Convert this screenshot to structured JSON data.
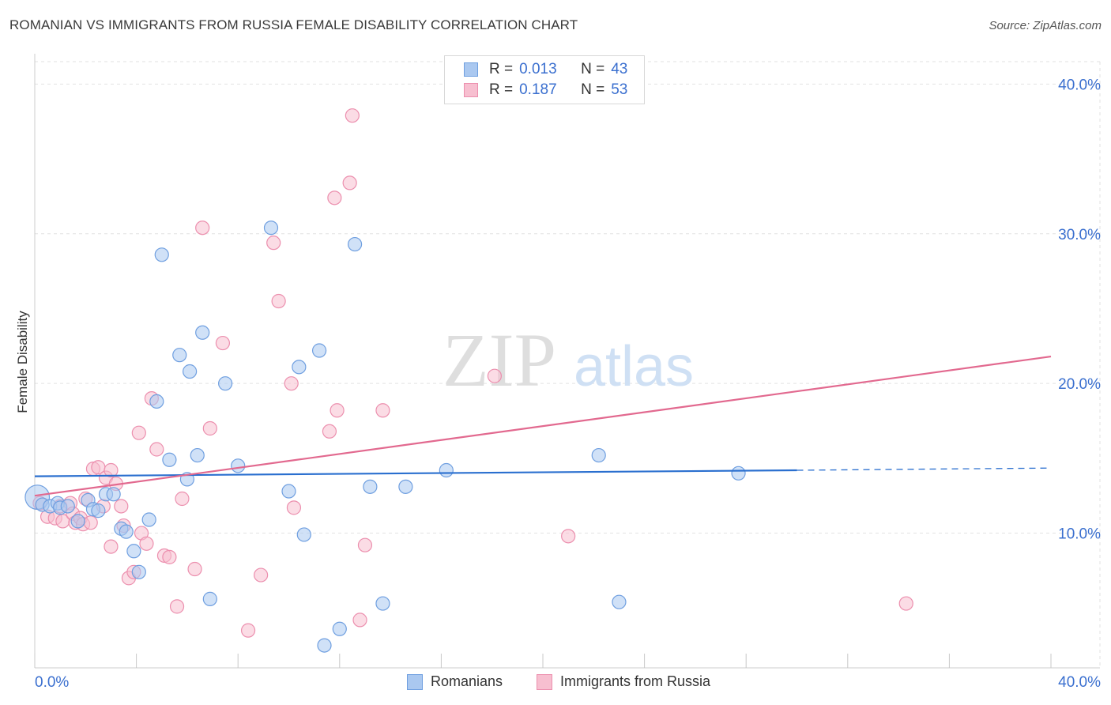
{
  "title": "ROMANIAN VS IMMIGRANTS FROM RUSSIA FEMALE DISABILITY CORRELATION CHART",
  "source": "Source: ZipAtlas.com",
  "watermark": {
    "zip": "ZIP",
    "atlas": "atlas"
  },
  "legend": {
    "series1": {
      "r_label": "R =",
      "r_value": "0.013",
      "n_label": "N =",
      "n_value": "43"
    },
    "series2": {
      "r_label": "R =",
      "r_value": "0.187",
      "n_label": "N =",
      "n_value": "53"
    }
  },
  "bottom_legend": {
    "series1": "Romanians",
    "series2": "Immigrants from Russia"
  },
  "colors": {
    "blue_fill": "#aac8f0",
    "blue_stroke": "#6f9fe0",
    "blue_line": "#2a6fcf",
    "pink_fill": "#f7bfd0",
    "pink_stroke": "#ec8fae",
    "pink_line": "#e2698f",
    "axis_text": "#3a6fcf",
    "grid": "#e2e2e2"
  },
  "chart_data": {
    "type": "scatter",
    "title": "ROMANIAN VS IMMIGRANTS FROM RUSSIA FEMALE DISABILITY CORRELATION CHART",
    "xlabel": "",
    "ylabel": "Female Disability",
    "xlim": [
      0,
      40
    ],
    "ylim": [
      1.0,
      41.5
    ],
    "x_tick_labels": [
      "0.0%",
      "40.0%"
    ],
    "y_ticks": [
      10,
      20,
      30,
      40
    ],
    "y_tick_labels": [
      "10.0%",
      "20.0%",
      "30.0%",
      "40.0%"
    ],
    "grid": true,
    "series": [
      {
        "name": "Romanians",
        "R": 0.013,
        "N": 43,
        "trend": {
          "x0": 0,
          "y0": 13.8,
          "x1": 30.0,
          "y1": 14.2,
          "dashed_to_x": 40.0,
          "dashed_to_y": 14.35
        },
        "points": [
          [
            0.1,
            12.4,
            18
          ],
          [
            0.3,
            11.9,
            10
          ],
          [
            0.6,
            11.8,
            10
          ],
          [
            0.9,
            12.0,
            10
          ],
          [
            1.0,
            11.7,
            10
          ],
          [
            1.3,
            11.8,
            10
          ],
          [
            1.7,
            10.8,
            10
          ],
          [
            2.1,
            12.2,
            10
          ],
          [
            2.3,
            11.6,
            10
          ],
          [
            2.5,
            11.5,
            10
          ],
          [
            2.8,
            12.6,
            10
          ],
          [
            3.1,
            12.6,
            10
          ],
          [
            3.4,
            10.3,
            10
          ],
          [
            3.6,
            10.1,
            10
          ],
          [
            3.9,
            8.8,
            10
          ],
          [
            4.1,
            7.4,
            10
          ],
          [
            4.5,
            10.9,
            10
          ],
          [
            4.8,
            18.8,
            10
          ],
          [
            5.0,
            28.6,
            10
          ],
          [
            5.3,
            14.9,
            10
          ],
          [
            5.7,
            21.9,
            10
          ],
          [
            6.0,
            13.6,
            10
          ],
          [
            6.1,
            20.8,
            10
          ],
          [
            6.4,
            15.2,
            10
          ],
          [
            6.6,
            23.4,
            10
          ],
          [
            6.9,
            5.6,
            10
          ],
          [
            7.5,
            20.0,
            10
          ],
          [
            8.0,
            14.5,
            10
          ],
          [
            9.3,
            30.4,
            10
          ],
          [
            10.0,
            12.8,
            10
          ],
          [
            10.4,
            21.1,
            10
          ],
          [
            10.6,
            9.9,
            10
          ],
          [
            11.2,
            22.2,
            10
          ],
          [
            11.4,
            2.5,
            10
          ],
          [
            12.0,
            3.6,
            10
          ],
          [
            12.6,
            29.3,
            10
          ],
          [
            13.2,
            13.1,
            10
          ],
          [
            13.7,
            5.3,
            10
          ],
          [
            14.6,
            13.1,
            10
          ],
          [
            16.2,
            14.2,
            10
          ],
          [
            22.2,
            15.2,
            10
          ],
          [
            23.0,
            5.4,
            10
          ],
          [
            27.7,
            14.0,
            10
          ]
        ]
      },
      {
        "name": "Immigrants from Russia",
        "R": 0.187,
        "N": 53,
        "trend": {
          "x0": 0,
          "y0": 12.5,
          "x1": 40.0,
          "y1": 21.8
        },
        "points": [
          [
            0.2,
            12.0,
            10
          ],
          [
            0.5,
            11.1,
            10
          ],
          [
            0.8,
            11.0,
            10
          ],
          [
            1.0,
            11.8,
            10
          ],
          [
            1.1,
            10.8,
            10
          ],
          [
            1.4,
            12.0,
            10
          ],
          [
            1.5,
            11.3,
            10
          ],
          [
            1.6,
            10.7,
            10
          ],
          [
            1.8,
            11.0,
            10
          ],
          [
            1.9,
            10.6,
            10
          ],
          [
            2.0,
            12.3,
            10
          ],
          [
            2.2,
            10.7,
            10
          ],
          [
            2.3,
            14.3,
            10
          ],
          [
            2.5,
            14.4,
            10
          ],
          [
            2.7,
            11.8,
            10
          ],
          [
            2.8,
            13.7,
            10
          ],
          [
            3.0,
            9.1,
            10
          ],
          [
            3.2,
            13.3,
            10
          ],
          [
            3.4,
            11.8,
            10
          ],
          [
            3.5,
            10.5,
            10
          ],
          [
            3.7,
            7.0,
            10
          ],
          [
            3.9,
            7.4,
            10
          ],
          [
            4.1,
            16.7,
            10
          ],
          [
            4.2,
            10.0,
            10
          ],
          [
            4.4,
            9.3,
            10
          ],
          [
            4.6,
            19.0,
            10
          ],
          [
            4.8,
            15.6,
            10
          ],
          [
            5.1,
            8.5,
            10
          ],
          [
            5.3,
            8.4,
            10
          ],
          [
            5.6,
            5.1,
            10
          ],
          [
            5.8,
            12.3,
            10
          ],
          [
            6.3,
            7.6,
            10
          ],
          [
            6.6,
            30.4,
            10
          ],
          [
            6.9,
            17.0,
            10
          ],
          [
            7.4,
            22.7,
            10
          ],
          [
            8.4,
            3.5,
            10
          ],
          [
            8.9,
            7.2,
            10
          ],
          [
            9.4,
            29.4,
            10
          ],
          [
            9.6,
            25.5,
            10
          ],
          [
            10.1,
            20.0,
            10
          ],
          [
            10.2,
            11.7,
            10
          ],
          [
            11.6,
            16.8,
            10
          ],
          [
            11.8,
            32.4,
            10
          ],
          [
            11.9,
            18.2,
            10
          ],
          [
            12.4,
            33.4,
            10
          ],
          [
            12.5,
            37.9,
            10
          ],
          [
            12.8,
            4.2,
            10
          ],
          [
            13.0,
            9.2,
            10
          ],
          [
            13.7,
            18.2,
            10
          ],
          [
            18.1,
            20.5,
            10
          ],
          [
            21.0,
            9.8,
            10
          ],
          [
            34.3,
            5.3,
            10
          ],
          [
            3.0,
            14.2,
            10
          ]
        ]
      }
    ]
  }
}
